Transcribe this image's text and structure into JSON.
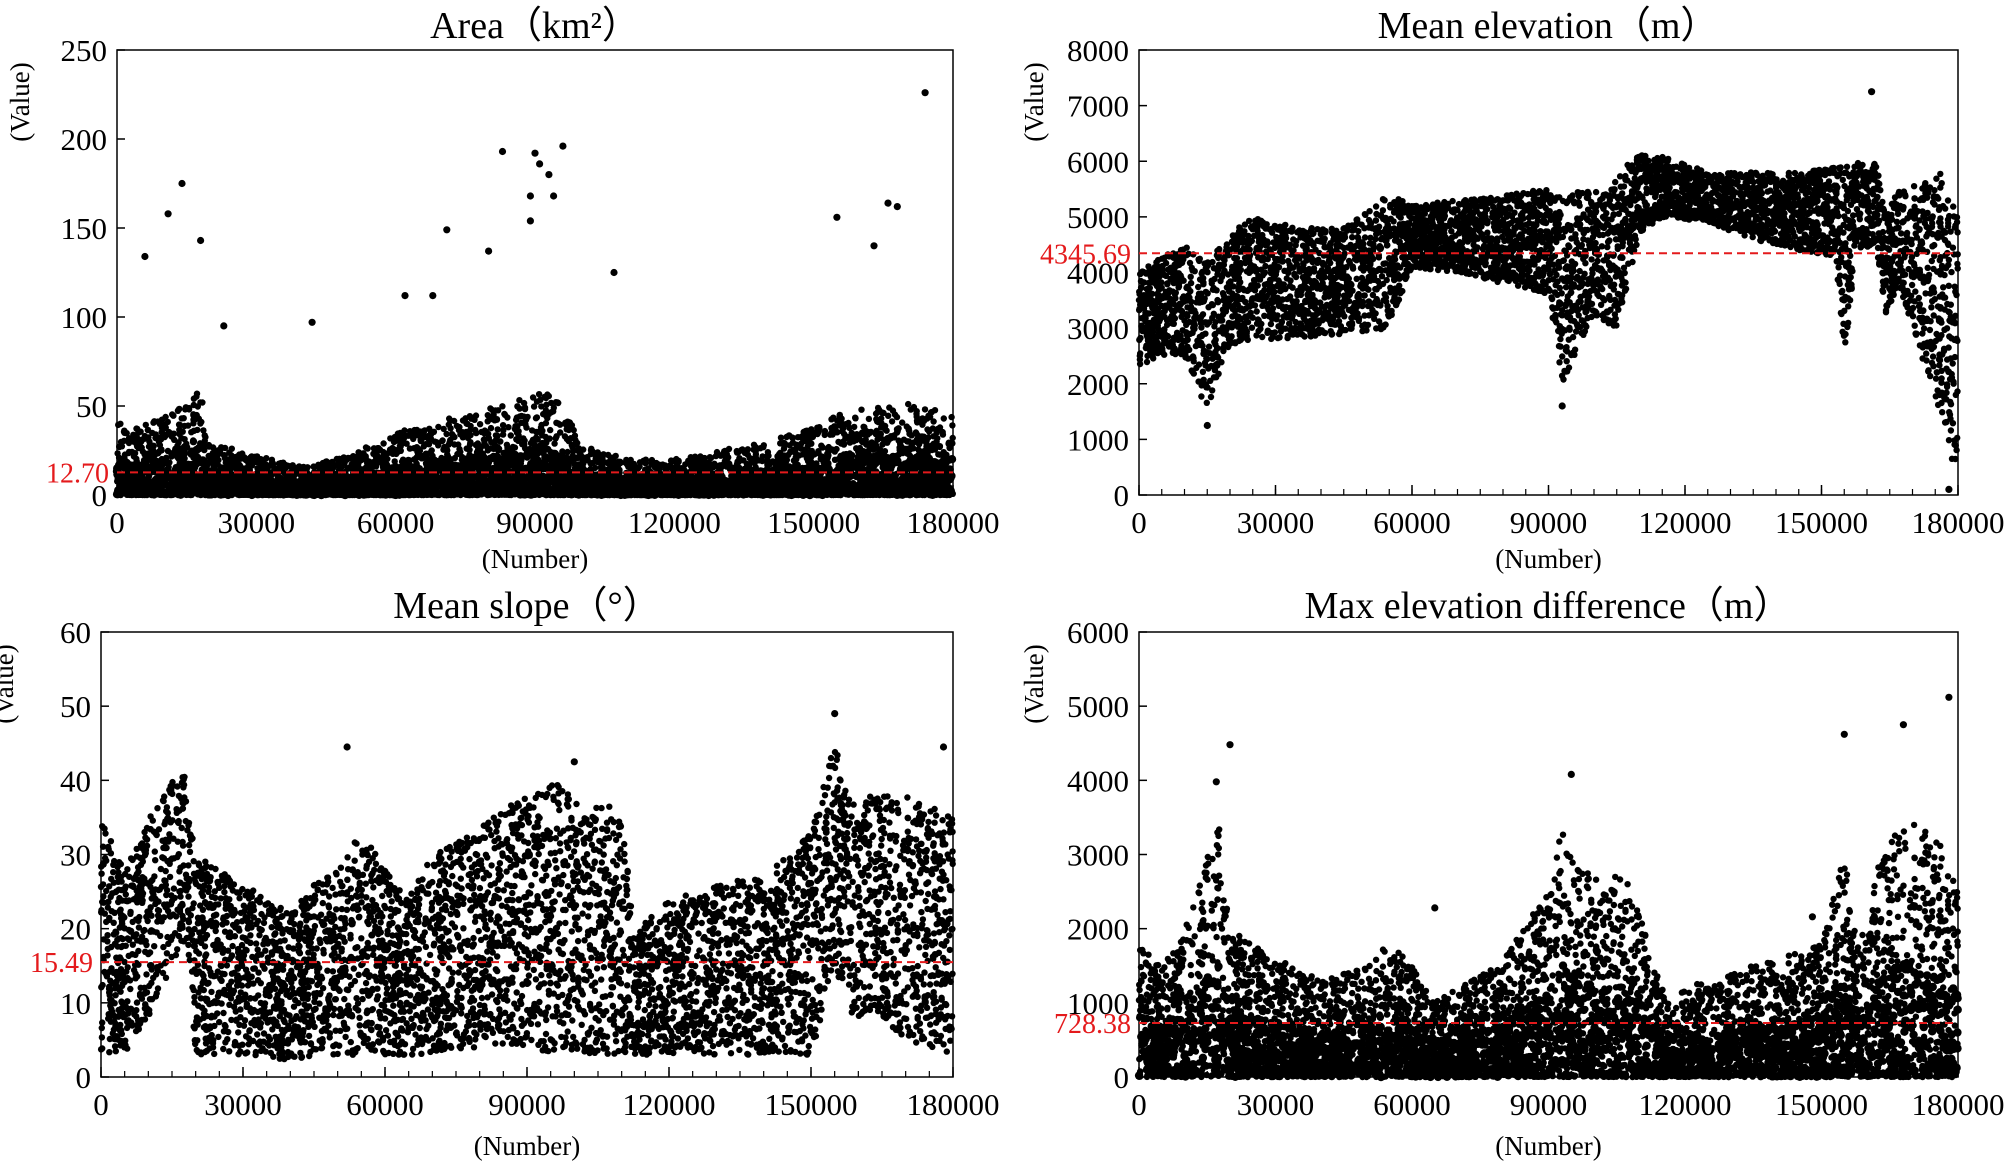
{
  "chart_data": [
    {
      "type": "scatter",
      "title": "Area（km²）",
      "xlabel": "(Number)",
      "ylabel": "(Value)",
      "xlim": [
        0,
        180000
      ],
      "ylim": [
        0,
        250
      ],
      "xticks": [
        0,
        30000,
        60000,
        90000,
        120000,
        150000,
        180000
      ],
      "yticks": [
        0,
        50,
        100,
        150,
        200,
        250
      ],
      "mean": 12.7,
      "mean_label": "12.70",
      "outliers": [
        [
          174000,
          226
        ],
        [
          96000,
          196
        ],
        [
          90000,
          192
        ],
        [
          83000,
          193
        ],
        [
          91000,
          186
        ],
        [
          93000,
          180
        ],
        [
          14000,
          175
        ],
        [
          94000,
          168
        ],
        [
          89000,
          168
        ],
        [
          166000,
          164
        ],
        [
          168000,
          162
        ],
        [
          11000,
          158
        ],
        [
          155000,
          156
        ],
        [
          89000,
          154
        ],
        [
          18000,
          143
        ],
        [
          71000,
          149
        ],
        [
          163000,
          140
        ],
        [
          80000,
          137
        ],
        [
          6000,
          134
        ],
        [
          107000,
          125
        ],
        [
          68000,
          112
        ],
        [
          62000,
          112
        ],
        [
          42000,
          97
        ],
        [
          23000,
          95
        ]
      ],
      "profile": [
        [
          0,
          42
        ],
        [
          5000,
          38
        ],
        [
          10000,
          44
        ],
        [
          15000,
          55
        ],
        [
          18000,
          60
        ],
        [
          20000,
          30
        ],
        [
          30000,
          22
        ],
        [
          40000,
          16
        ],
        [
          50000,
          22
        ],
        [
          60000,
          35
        ],
        [
          70000,
          42
        ],
        [
          85000,
          52
        ],
        [
          92000,
          58
        ],
        [
          96000,
          50
        ],
        [
          100000,
          28
        ],
        [
          110000,
          20
        ],
        [
          120000,
          20
        ],
        [
          130000,
          25
        ],
        [
          140000,
          30
        ],
        [
          150000,
          38
        ],
        [
          155000,
          45
        ],
        [
          160000,
          48
        ],
        [
          170000,
          52
        ],
        [
          180000,
          45
        ]
      ]
    },
    {
      "type": "scatter",
      "title": "Mean elevation（m）",
      "xlabel": "(Number)",
      "ylabel": "(Value)",
      "xlim": [
        0,
        180000
      ],
      "ylim": [
        0,
        8000
      ],
      "xticks": [
        0,
        30000,
        60000,
        90000,
        120000,
        150000,
        180000
      ],
      "yticks": [
        0,
        1000,
        2000,
        3000,
        4000,
        5000,
        6000,
        7000,
        8000
      ],
      "mean": 4345.69,
      "mean_label": "4345.69",
      "outliers": [
        [
          161000,
          7250
        ],
        [
          15000,
          1250
        ],
        [
          93000,
          1600
        ],
        [
          178000,
          100
        ]
      ],
      "profile": [
        [
          0,
          2300,
          4000
        ],
        [
          5000,
          2500,
          4300
        ],
        [
          10000,
          2500,
          4500
        ],
        [
          15000,
          1500,
          4200
        ],
        [
          20000,
          2700,
          4700
        ],
        [
          25000,
          2800,
          5000
        ],
        [
          35000,
          2800,
          4800
        ],
        [
          45000,
          2900,
          4800
        ],
        [
          55000,
          3000,
          5400
        ],
        [
          60000,
          4100,
          5200
        ],
        [
          70000,
          4000,
          5300
        ],
        [
          80000,
          3800,
          5400
        ],
        [
          90000,
          3600,
          5500
        ],
        [
          93000,
          2000,
          5400
        ],
        [
          100000,
          3200,
          5500
        ],
        [
          105000,
          3000,
          5700
        ],
        [
          110000,
          4700,
          6200
        ],
        [
          115000,
          5000,
          6100
        ],
        [
          125000,
          4900,
          5800
        ],
        [
          135000,
          4600,
          5800
        ],
        [
          145000,
          4400,
          5800
        ],
        [
          153000,
          4300,
          5900
        ],
        [
          155000,
          2500,
          5900
        ],
        [
          158000,
          4400,
          6000
        ],
        [
          162000,
          4500,
          6000
        ],
        [
          164000,
          3200,
          5000
        ],
        [
          167000,
          3800,
          5500
        ],
        [
          172000,
          2500,
          5600
        ],
        [
          176000,
          1500,
          5800
        ],
        [
          180000,
          200,
          5000
        ]
      ]
    },
    {
      "type": "scatter",
      "title": "Mean slope（°）",
      "xlabel": "(Number)",
      "ylabel": "(Value)",
      "xlim": [
        0,
        180000
      ],
      "ylim": [
        0,
        60
      ],
      "xticks": [
        0,
        30000,
        60000,
        90000,
        120000,
        150000,
        180000
      ],
      "yticks": [
        0,
        10,
        20,
        30,
        40,
        50,
        60
      ],
      "mean": 15.49,
      "mean_label": "15.49",
      "outliers": [
        [
          52000,
          44.5
        ],
        [
          155000,
          49
        ],
        [
          178000,
          44.5
        ],
        [
          100000,
          42.5
        ]
      ],
      "profile": [
        [
          0,
          3,
          35
        ],
        [
          5000,
          3,
          28
        ],
        [
          10000,
          8,
          35
        ],
        [
          15000,
          15,
          40
        ],
        [
          18000,
          18,
          41
        ],
        [
          20000,
          3,
          30
        ],
        [
          30000,
          3,
          26
        ],
        [
          40000,
          2,
          22
        ],
        [
          45000,
          3,
          26
        ],
        [
          50000,
          3,
          28
        ],
        [
          55000,
          3,
          33
        ],
        [
          60000,
          3,
          28
        ],
        [
          65000,
          3,
          24
        ],
        [
          70000,
          3,
          30
        ],
        [
          80000,
          4,
          34
        ],
        [
          90000,
          4,
          38
        ],
        [
          95000,
          3,
          40
        ],
        [
          100000,
          3,
          38
        ],
        [
          110000,
          3,
          36
        ],
        [
          113000,
          3,
          20
        ],
        [
          120000,
          3,
          24
        ],
        [
          130000,
          3,
          26
        ],
        [
          140000,
          3,
          27
        ],
        [
          150000,
          3,
          33
        ],
        [
          155000,
          15,
          45
        ],
        [
          158000,
          8,
          38
        ],
        [
          165000,
          8,
          38
        ],
        [
          170000,
          5,
          38
        ],
        [
          180000,
          3,
          35
        ]
      ]
    },
    {
      "type": "scatter",
      "title": "Max elevation difference（m）",
      "xlabel": "(Number)",
      "ylabel": "(Value)",
      "xlim": [
        0,
        180000
      ],
      "ylim": [
        0,
        6000
      ],
      "xticks": [
        0,
        30000,
        60000,
        90000,
        120000,
        150000,
        180000
      ],
      "yticks": [
        0,
        1000,
        2000,
        3000,
        4000,
        5000,
        6000
      ],
      "mean": 728.38,
      "mean_label": "728.38",
      "outliers": [
        [
          20000,
          4480
        ],
        [
          178000,
          5120
        ],
        [
          95000,
          4080
        ],
        [
          155000,
          4620
        ],
        [
          168000,
          4750
        ],
        [
          17000,
          3980
        ],
        [
          65000,
          2280
        ],
        [
          148000,
          2160
        ]
      ],
      "profile": [
        [
          0,
          0,
          1800
        ],
        [
          5000,
          0,
          1500
        ],
        [
          10000,
          0,
          2000
        ],
        [
          15000,
          0,
          3000
        ],
        [
          18000,
          0,
          3500
        ],
        [
          20000,
          0,
          2000
        ],
        [
          30000,
          0,
          1600
        ],
        [
          40000,
          0,
          1300
        ],
        [
          50000,
          0,
          1500
        ],
        [
          55000,
          0,
          1800
        ],
        [
          60000,
          0,
          1500
        ],
        [
          65000,
          0,
          1000
        ],
        [
          70000,
          0,
          1200
        ],
        [
          80000,
          0,
          1600
        ],
        [
          90000,
          0,
          2500
        ],
        [
          93000,
          0,
          3500
        ],
        [
          96000,
          0,
          2800
        ],
        [
          105000,
          0,
          2800
        ],
        [
          110000,
          0,
          2400
        ],
        [
          116000,
          0,
          1000
        ],
        [
          120000,
          0,
          1200
        ],
        [
          130000,
          0,
          1400
        ],
        [
          140000,
          0,
          1600
        ],
        [
          150000,
          0,
          1800
        ],
        [
          155000,
          0,
          3000
        ],
        [
          158000,
          0,
          1800
        ],
        [
          162000,
          0,
          2800
        ],
        [
          168000,
          0,
          3500
        ],
        [
          175000,
          0,
          3300
        ],
        [
          180000,
          0,
          2500
        ]
      ]
    }
  ]
}
